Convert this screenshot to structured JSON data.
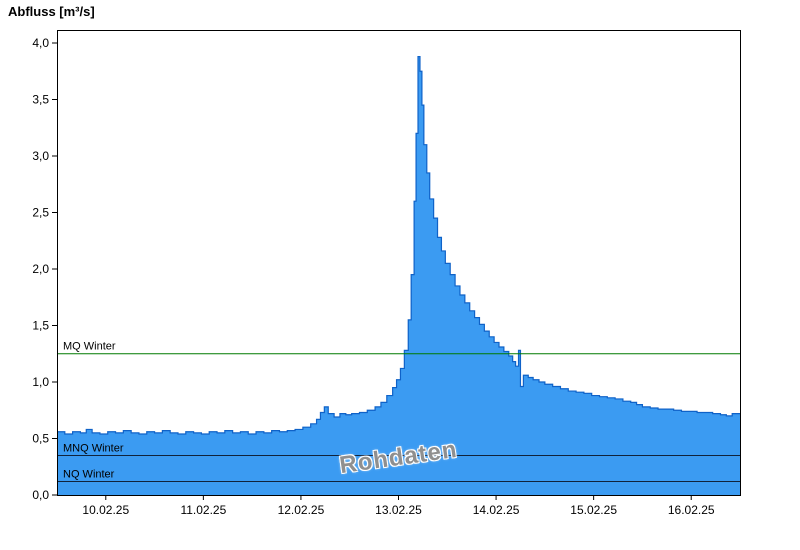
{
  "title": "Abfluss [m³/s]",
  "watermark": "Rohdaten",
  "colors": {
    "area_fill": "#3b9bf2",
    "area_line": "#0f62c8",
    "mq_line": "#007a00",
    "low_ref_line": "#10233c",
    "axis": "#000000",
    "label": "#000000",
    "watermark": "#8f8f8f"
  },
  "chart_data": {
    "type": "area",
    "title": "Abfluss [m³/s]",
    "ylabel": "Abfluss [m³/s]",
    "xlabel": "",
    "ylim": [
      0,
      4
    ],
    "y_axis_max": 4.115,
    "x_range": [
      0,
      7
    ],
    "x_tick_positions": [
      0.5,
      1.5,
      2.5,
      3.5,
      4.5,
      5.5,
      6.5
    ],
    "x_tick_labels": [
      "10.02.25",
      "11.02.25",
      "12.02.25",
      "13.02.25",
      "14.02.25",
      "15.02.25",
      "16.02.25"
    ],
    "y_ticks": [
      0,
      0.5,
      1.0,
      1.5,
      2.0,
      2.5,
      3.0,
      3.5,
      4.0
    ],
    "y_tick_labels": [
      "0,0",
      "0,5",
      "1,0",
      "1,5",
      "2,0",
      "2,5",
      "3,0",
      "3,5",
      "4,0"
    ],
    "grid": false,
    "legend": "none",
    "reference_lines": [
      {
        "label": "MQ Winter",
        "value": 1.25,
        "color_key": "mq_line"
      },
      {
        "label": "MNQ Winter",
        "value": 0.35,
        "color_key": "low_ref_line"
      },
      {
        "label": "NQ Winter",
        "value": 0.12,
        "color_key": "low_ref_line"
      }
    ],
    "series": [
      {
        "name": "Rohdaten",
        "points": [
          [
            0.0,
            0.56
          ],
          [
            0.08,
            0.54
          ],
          [
            0.16,
            0.56
          ],
          [
            0.24,
            0.55
          ],
          [
            0.3,
            0.58
          ],
          [
            0.36,
            0.55
          ],
          [
            0.44,
            0.54
          ],
          [
            0.52,
            0.56
          ],
          [
            0.6,
            0.55
          ],
          [
            0.68,
            0.57
          ],
          [
            0.76,
            0.55
          ],
          [
            0.84,
            0.54
          ],
          [
            0.92,
            0.56
          ],
          [
            1.0,
            0.55
          ],
          [
            1.08,
            0.57
          ],
          [
            1.16,
            0.55
          ],
          [
            1.24,
            0.54
          ],
          [
            1.32,
            0.56
          ],
          [
            1.4,
            0.55
          ],
          [
            1.48,
            0.54
          ],
          [
            1.56,
            0.56
          ],
          [
            1.64,
            0.55
          ],
          [
            1.72,
            0.57
          ],
          [
            1.8,
            0.55
          ],
          [
            1.88,
            0.56
          ],
          [
            1.96,
            0.54
          ],
          [
            2.04,
            0.56
          ],
          [
            2.12,
            0.55
          ],
          [
            2.2,
            0.57
          ],
          [
            2.28,
            0.56
          ],
          [
            2.36,
            0.57
          ],
          [
            2.44,
            0.58
          ],
          [
            2.52,
            0.6
          ],
          [
            2.6,
            0.63
          ],
          [
            2.66,
            0.67
          ],
          [
            2.7,
            0.73
          ],
          [
            2.74,
            0.78
          ],
          [
            2.78,
            0.72
          ],
          [
            2.84,
            0.69
          ],
          [
            2.9,
            0.72
          ],
          [
            2.96,
            0.71
          ],
          [
            3.02,
            0.72
          ],
          [
            3.1,
            0.73
          ],
          [
            3.18,
            0.75
          ],
          [
            3.26,
            0.78
          ],
          [
            3.32,
            0.82
          ],
          [
            3.38,
            0.88
          ],
          [
            3.44,
            0.95
          ],
          [
            3.48,
            1.02
          ],
          [
            3.52,
            1.12
          ],
          [
            3.56,
            1.28
          ],
          [
            3.6,
            1.55
          ],
          [
            3.63,
            1.95
          ],
          [
            3.66,
            2.6
          ],
          [
            3.68,
            3.2
          ],
          [
            3.7,
            3.88
          ],
          [
            3.72,
            3.75
          ],
          [
            3.74,
            3.45
          ],
          [
            3.76,
            3.1
          ],
          [
            3.79,
            2.85
          ],
          [
            3.82,
            2.62
          ],
          [
            3.86,
            2.45
          ],
          [
            3.9,
            2.28
          ],
          [
            3.94,
            2.16
          ],
          [
            3.98,
            2.05
          ],
          [
            4.03,
            1.95
          ],
          [
            4.08,
            1.85
          ],
          [
            4.13,
            1.77
          ],
          [
            4.18,
            1.7
          ],
          [
            4.23,
            1.63
          ],
          [
            4.28,
            1.57
          ],
          [
            4.33,
            1.51
          ],
          [
            4.38,
            1.45
          ],
          [
            4.43,
            1.4
          ],
          [
            4.48,
            1.35
          ],
          [
            4.53,
            1.31
          ],
          [
            4.58,
            1.27
          ],
          [
            4.63,
            1.23
          ],
          [
            4.67,
            1.18
          ],
          [
            4.7,
            1.14
          ],
          [
            4.73,
            1.28
          ],
          [
            4.75,
            0.96
          ],
          [
            4.78,
            1.06
          ],
          [
            4.83,
            1.04
          ],
          [
            4.88,
            1.02
          ],
          [
            4.94,
            1.0
          ],
          [
            5.0,
            0.98
          ],
          [
            5.08,
            0.96
          ],
          [
            5.16,
            0.94
          ],
          [
            5.24,
            0.92
          ],
          [
            5.32,
            0.91
          ],
          [
            5.4,
            0.9
          ],
          [
            5.48,
            0.88
          ],
          [
            5.56,
            0.87
          ],
          [
            5.64,
            0.86
          ],
          [
            5.72,
            0.85
          ],
          [
            5.8,
            0.83
          ],
          [
            5.88,
            0.82
          ],
          [
            5.94,
            0.8
          ],
          [
            6.0,
            0.78
          ],
          [
            6.08,
            0.77
          ],
          [
            6.16,
            0.76
          ],
          [
            6.24,
            0.76
          ],
          [
            6.32,
            0.75
          ],
          [
            6.4,
            0.74
          ],
          [
            6.48,
            0.74
          ],
          [
            6.56,
            0.73
          ],
          [
            6.64,
            0.73
          ],
          [
            6.72,
            0.72
          ],
          [
            6.8,
            0.71
          ],
          [
            6.86,
            0.7
          ],
          [
            6.92,
            0.72
          ],
          [
            7.0,
            0.72
          ]
        ]
      }
    ]
  }
}
